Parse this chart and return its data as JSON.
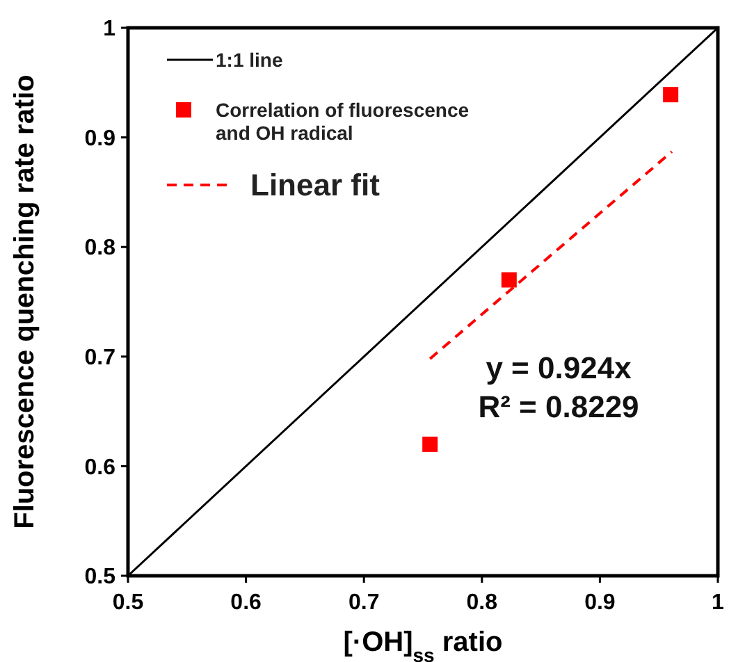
{
  "chart_data": {
    "type": "scatter",
    "xlabel": "[·OH]$_{ss}$ ratio",
    "ylabel": "Fluorescence quenching rate ratio",
    "xlim": [
      0.5,
      1
    ],
    "ylim": [
      0.5,
      1
    ],
    "xticks": [
      0.5,
      0.6,
      0.7,
      0.8,
      0.9,
      1
    ],
    "yticks": [
      0.5,
      0.6,
      0.7,
      0.8,
      0.9,
      1
    ],
    "grid": false,
    "legend": "top left",
    "series": [
      {
        "name": "1:1 line",
        "type": "line",
        "color": "#000000",
        "line_style": "solid",
        "x": [
          0.5,
          1
        ],
        "values": [
          0.5,
          1
        ]
      },
      {
        "name": "Correlation of fluorescence and OH radical",
        "color": "#ff0000",
        "marker": "square",
        "x": [
          0.756,
          0.823,
          0.96
        ],
        "values": [
          0.62,
          0.77,
          0.939
        ]
      },
      {
        "name": "Linear fit",
        "type": "line",
        "color": "#ff0000",
        "line_style": "dashed",
        "x": [
          0.756,
          0.961
        ],
        "values": [
          0.698,
          0.887
        ]
      }
    ],
    "annotations": [
      "y = 0.924x",
      "R² = 0.8229"
    ]
  }
}
